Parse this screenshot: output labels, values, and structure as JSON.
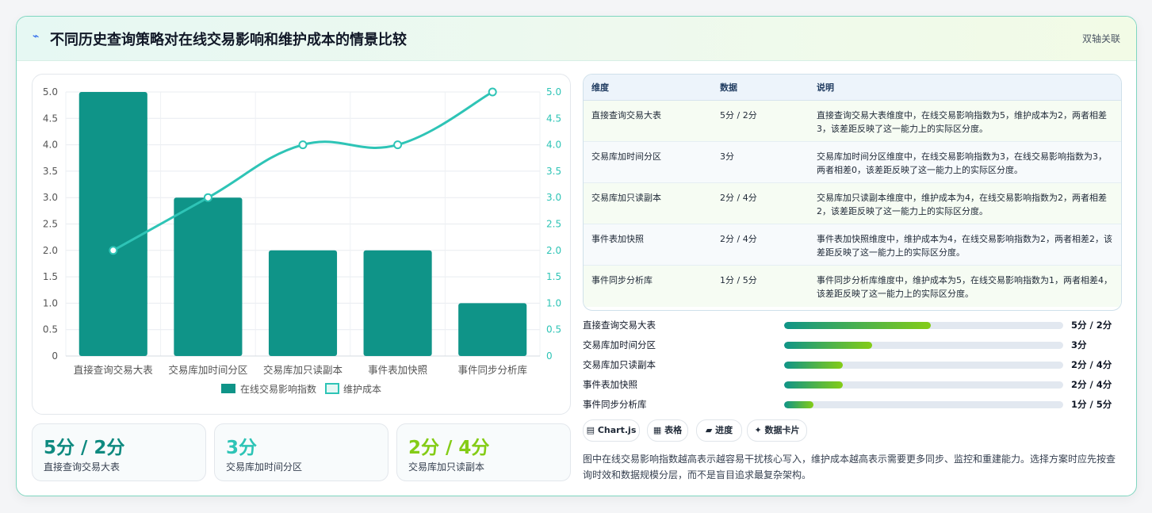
{
  "header": {
    "logo_icon": "⌁",
    "title": "不同历史查询策略对在线交易影响和维护成本的情景比较",
    "tag": "双轴关联"
  },
  "chart_data": {
    "type": "bar",
    "categories": [
      "直接查询交易大表",
      "交易库加时间分区",
      "交易库加只读副本",
      "事件表加快照",
      "事件同步分析库"
    ],
    "series": [
      {
        "name": "在线交易影响指数",
        "type": "bar",
        "axis": "left",
        "color": "#0f9488",
        "values": [
          5,
          3,
          2,
          2,
          1
        ]
      },
      {
        "name": "维护成本",
        "type": "line",
        "axis": "right",
        "color": "#2ec4b6",
        "values": [
          2,
          3,
          4,
          4,
          5
        ]
      }
    ],
    "ylim": [
      0,
      5
    ],
    "y2lim": [
      0,
      5
    ],
    "yticks": [
      "0",
      "0.5",
      "1.0",
      "1.5",
      "2.0",
      "2.5",
      "3.0",
      "3.5",
      "4.0",
      "4.5",
      "5.0"
    ],
    "legend_position": "bottom",
    "grid": true
  },
  "kpis": [
    {
      "value": "5分 / 2分",
      "label": "直接查询交易大表",
      "color": "#0f8a80"
    },
    {
      "value": "3分",
      "label": "交易库加时间分区",
      "color": "#2ec4b6"
    },
    {
      "value": "2分 / 4分",
      "label": "交易库加只读副本",
      "color": "#84cc16"
    }
  ],
  "table": {
    "headers": [
      "维度",
      "数据",
      "说明"
    ],
    "rows": [
      {
        "dim": "直接查询交易大表",
        "data": "5分 / 2分",
        "desc": "直接查询交易大表维度中，在线交易影响指数为5，维护成本为2，两者相差3，该差距反映了这一能力上的实际区分度。"
      },
      {
        "dim": "交易库加时间分区",
        "data": "3分",
        "desc": "交易库加时间分区维度中，在线交易影响指数为3，在线交易影响指数为3，两者相差0，该差距反映了这一能力上的实际区分度。"
      },
      {
        "dim": "交易库加只读副本",
        "data": "2分 / 4分",
        "desc": "交易库加只读副本维度中，维护成本为4，在线交易影响指数为2，两者相差2，该差距反映了这一能力上的实际区分度。"
      },
      {
        "dim": "事件表加快照",
        "data": "2分 / 4分",
        "desc": "事件表加快照维度中，维护成本为4，在线交易影响指数为2，两者相差2，该差距反映了这一能力上的实际区分度。"
      },
      {
        "dim": "事件同步分析库",
        "data": "1分 / 5分",
        "desc": "事件同步分析库维度中，维护成本为5，在线交易影响指数为1，两者相差4，该差距反映了这一能力上的实际区分度。"
      }
    ]
  },
  "progress": [
    {
      "label": "直接查询交易大表",
      "value": "5分 / 2分",
      "fraction": 0.525
    },
    {
      "label": "交易库加时间分区",
      "value": "3分",
      "fraction": 0.315
    },
    {
      "label": "交易库加只读副本",
      "value": "2分 / 4分",
      "fraction": 0.21
    },
    {
      "label": "事件表加快照",
      "value": "2分 / 4分",
      "fraction": 0.21
    },
    {
      "label": "事件同步分析库",
      "value": "1分 / 5分",
      "fraction": 0.105
    }
  ],
  "chips": [
    {
      "icon": "▤",
      "label": "Chart.js"
    },
    {
      "icon": "▦",
      "label": "表格"
    },
    {
      "icon": "▰",
      "label": "进度"
    },
    {
      "icon": "✦",
      "label": "数据卡片"
    }
  ],
  "note": "图中在线交易影响指数越高表示越容易干扰核心写入，维护成本越高表示需要更多同步、监控和重建能力。选择方案时应先按查询时效和数据规模分层，而不是盲目追求最复杂架构。"
}
